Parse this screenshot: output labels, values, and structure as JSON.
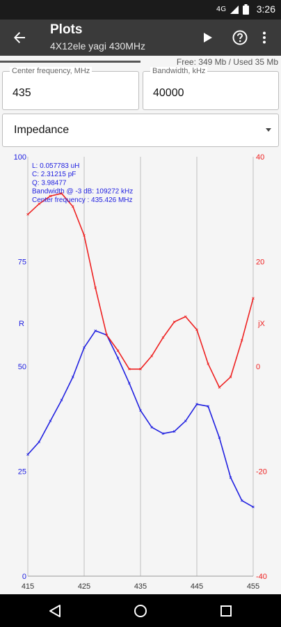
{
  "status_bar": {
    "time": "3:26",
    "network": "4G",
    "icons": [
      "signal-icon",
      "battery-icon"
    ]
  },
  "app_bar": {
    "title": "Plots",
    "subtitle": "4X12ele yagi 430MHz"
  },
  "memory": "Free: 349 Mb / Used 35 Mb",
  "center_frequency": {
    "label": "Center frequency, MHz",
    "value": "435"
  },
  "bandwidth": {
    "label": "Bandwidth, kHz",
    "value": "40000"
  },
  "plot_type": {
    "value": "Impedance"
  },
  "colors": {
    "r": "#2020e0",
    "jx": "#ee2020",
    "grid": "#bfbfbf",
    "bg": "#f5f5f5"
  },
  "chart_data": {
    "type": "line",
    "x_ticks": [
      "415",
      "425",
      "435",
      "445",
      "455"
    ],
    "xlim": [
      415,
      455
    ],
    "left_axis": {
      "label": "R",
      "ticks": [
        "0",
        "25",
        "50",
        "75",
        "100"
      ],
      "ylim": [
        0,
        100
      ]
    },
    "right_axis": {
      "label": "jX",
      "ticks": [
        "-40",
        "-20",
        "0",
        "20",
        "40"
      ],
      "ylim": [
        -40,
        40
      ]
    },
    "annotations": [
      "L: 0.057783 uH",
      "C: 2.31215 pF",
      "Q: 3.98477",
      "Bandwidth @ -3 dB: 109272 kHz",
      "Center frequency : 435.426 MHz"
    ],
    "series": [
      {
        "axis": "left",
        "x": [
          415,
          417,
          419,
          421,
          423,
          425,
          427,
          429,
          431,
          433,
          435,
          437,
          439,
          441,
          443,
          445,
          447,
          449,
          451,
          453,
          455
        ],
        "values": [
          29,
          32,
          37,
          42,
          47.5,
          54.5,
          58.5,
          57.5,
          52,
          46,
          39.5,
          35.5,
          34,
          34.5,
          37,
          41,
          40.5,
          33,
          23.5,
          18,
          16.5
        ]
      },
      {
        "axis": "right",
        "x": [
          415,
          417,
          419,
          421,
          423,
          425,
          427,
          429,
          431,
          433,
          435,
          437,
          439,
          441,
          443,
          445,
          447,
          449,
          451,
          453,
          455
        ],
        "values": [
          29,
          31,
          32.5,
          33,
          30.5,
          25,
          15,
          6,
          3,
          -0.5,
          -0.5,
          2,
          5.5,
          8.5,
          9.5,
          7,
          0.5,
          -4,
          -2,
          5,
          13
        ]
      }
    ]
  }
}
